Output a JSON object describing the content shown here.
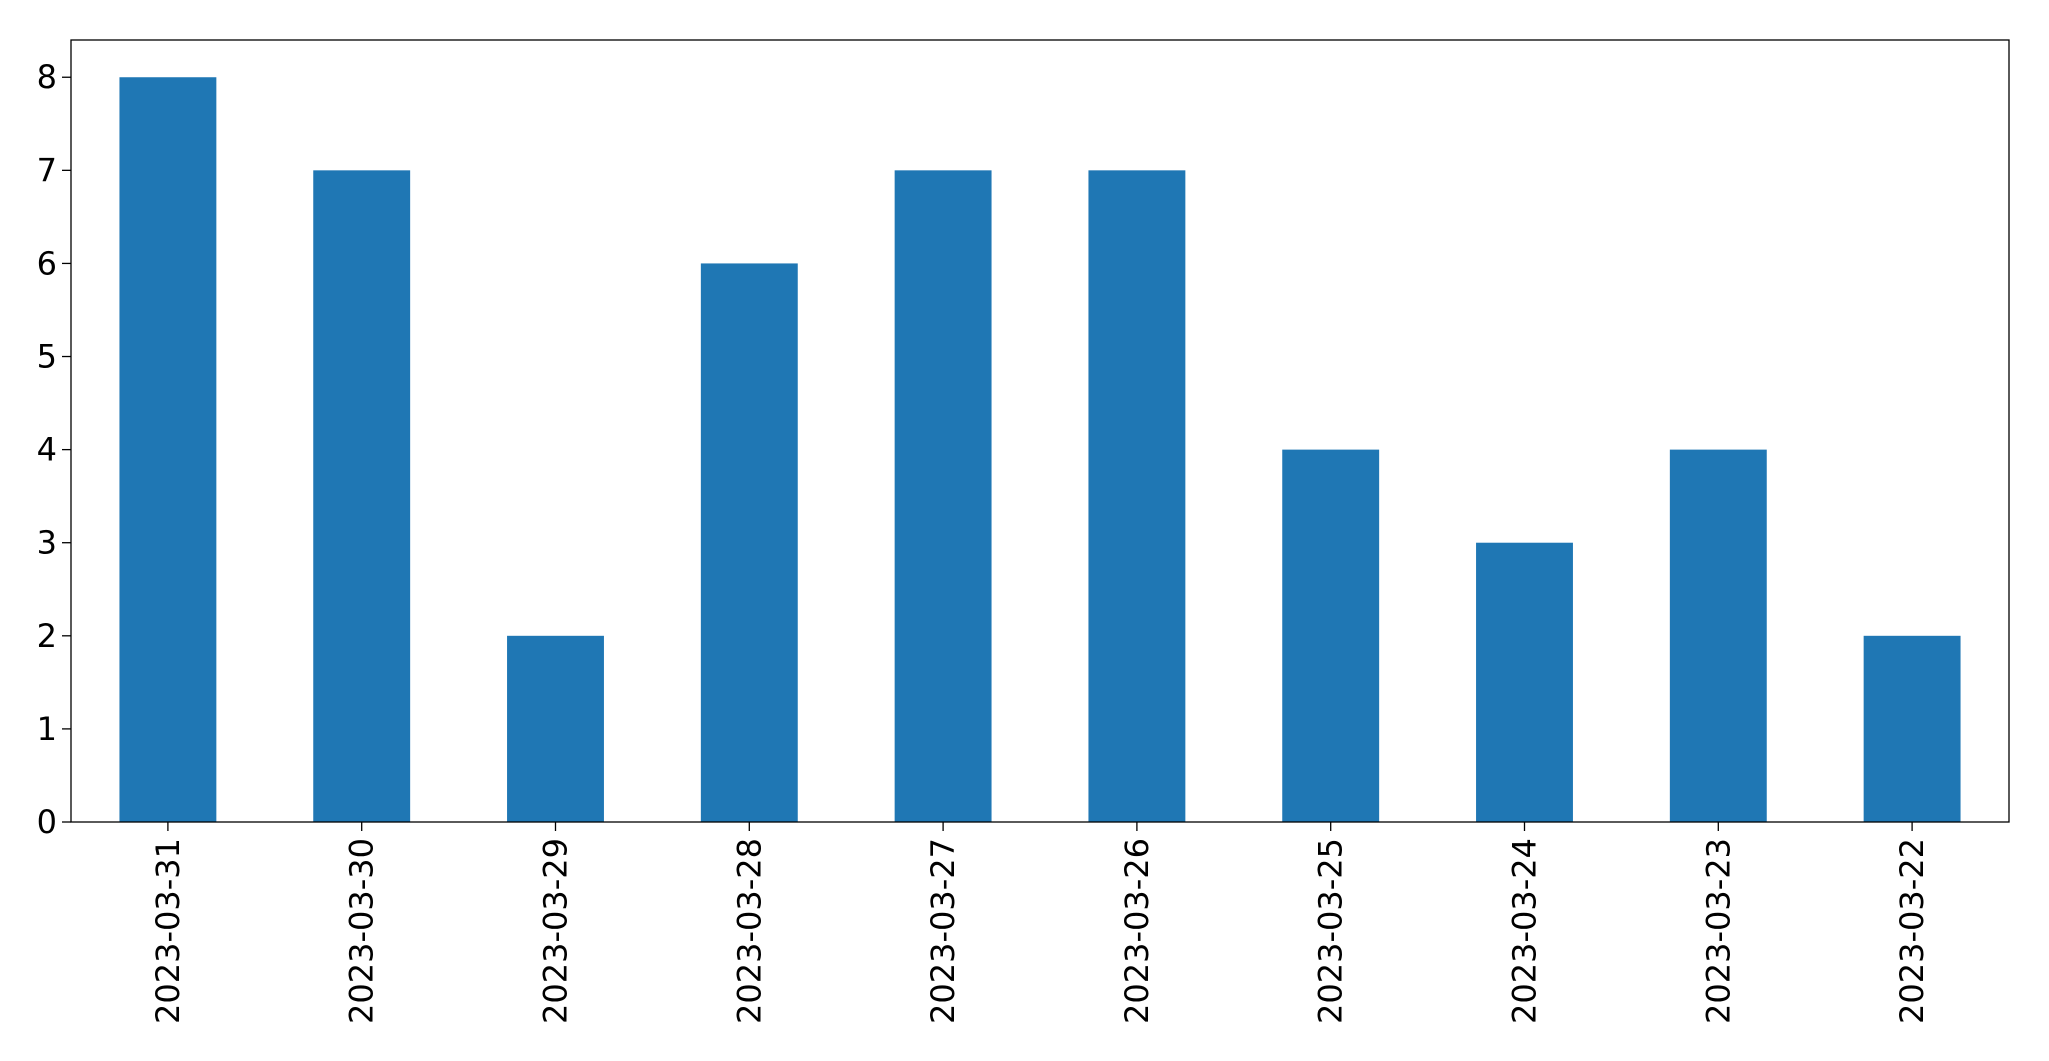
{
  "chart_data": {
    "type": "bar",
    "categories": [
      "2023-03-31",
      "2023-03-30",
      "2023-03-29",
      "2023-03-28",
      "2023-03-27",
      "2023-03-26",
      "2023-03-25",
      "2023-03-24",
      "2023-03-23",
      "2023-03-22"
    ],
    "values": [
      8,
      7,
      2,
      6,
      7,
      7,
      4,
      3,
      4,
      2
    ],
    "color": "#1f77b4",
    "ylim": [
      0,
      8.4
    ],
    "yticks": [
      0,
      1,
      2,
      3,
      4,
      5,
      6,
      7,
      8
    ],
    "grid": false
  }
}
